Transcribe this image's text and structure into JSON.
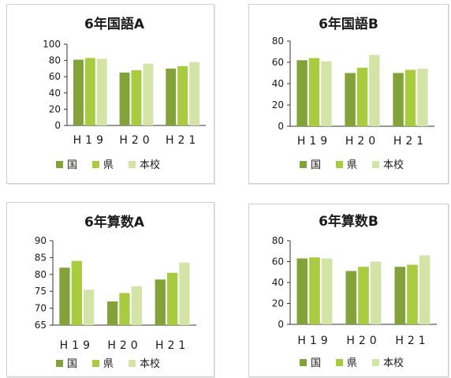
{
  "chart_data": [
    {
      "type": "bar",
      "title": "6年国語A",
      "categories": [
        "H19",
        "H20",
        "H21"
      ],
      "ylim": [
        0,
        100
      ],
      "yticks": [
        0,
        20,
        40,
        60,
        80,
        100
      ],
      "series": [
        {
          "name": "国",
          "values": [
            81,
            65,
            70
          ]
        },
        {
          "name": "県",
          "values": [
            83,
            68,
            73
          ]
        },
        {
          "name": "本校",
          "values": [
            82,
            76,
            78
          ]
        }
      ],
      "legend": "bottom",
      "grid": false
    },
    {
      "type": "bar",
      "title": "6年国語B",
      "categories": [
        "H19",
        "H20",
        "H21"
      ],
      "ylim": [
        0,
        80
      ],
      "yticks": [
        0,
        20,
        40,
        60,
        80
      ],
      "series": [
        {
          "name": "国",
          "values": [
            62,
            50,
            50
          ]
        },
        {
          "name": "県",
          "values": [
            64,
            55,
            53
          ]
        },
        {
          "name": "本校",
          "values": [
            61,
            67,
            54
          ]
        }
      ],
      "legend": "bottom",
      "grid": false
    },
    {
      "type": "bar",
      "title": "6年算数A",
      "categories": [
        "H19",
        "H20",
        "H21"
      ],
      "ylim": [
        65,
        90
      ],
      "yticks": [
        65,
        70,
        75,
        80,
        85,
        90
      ],
      "series": [
        {
          "name": "国",
          "values": [
            82,
            72,
            78.5
          ]
        },
        {
          "name": "県",
          "values": [
            84,
            74.5,
            80.5
          ]
        },
        {
          "name": "本校",
          "values": [
            75.5,
            76.5,
            83.5
          ]
        }
      ],
      "legend": "bottom",
      "grid": false
    },
    {
      "type": "bar",
      "title": "6年算数B",
      "categories": [
        "H19",
        "H20",
        "H21"
      ],
      "ylim": [
        0,
        80
      ],
      "yticks": [
        0,
        20,
        40,
        60,
        80
      ],
      "series": [
        {
          "name": "国",
          "values": [
            63,
            51,
            55
          ]
        },
        {
          "name": "県",
          "values": [
            64,
            55,
            57
          ]
        },
        {
          "name": "本校",
          "values": [
            63,
            60,
            66
          ]
        }
      ],
      "legend": "bottom",
      "grid": false
    }
  ],
  "colors": {
    "国": "#84a23a",
    "県": "#a9cb40",
    "本校": "#d4e4a6",
    "axis": "#333333"
  }
}
